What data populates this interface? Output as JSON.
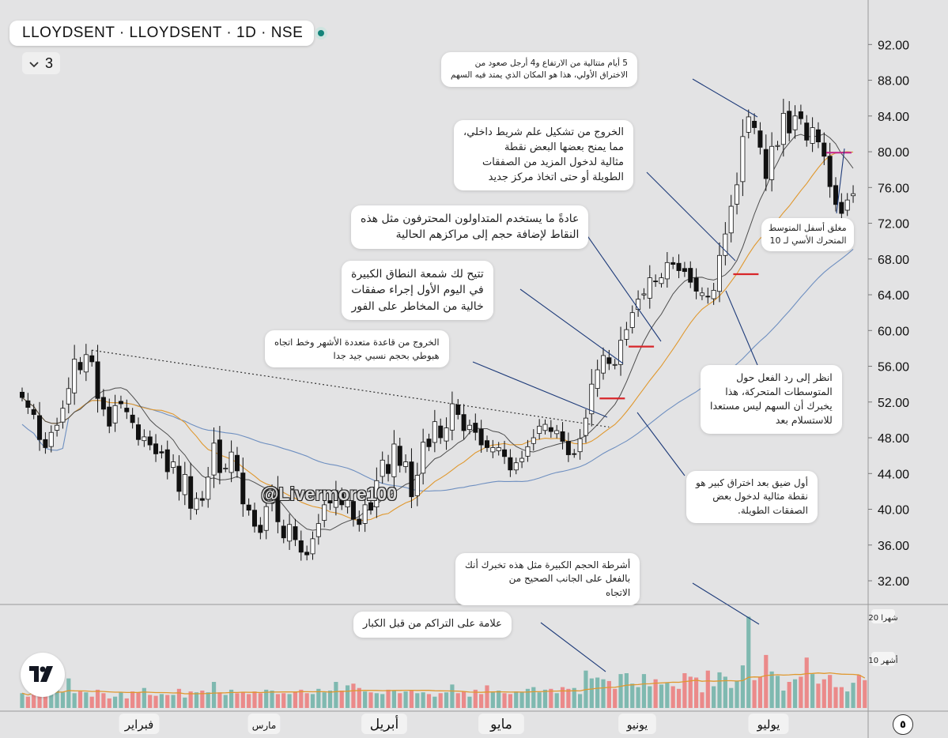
{
  "header": {
    "title": "LLOYDSENT · LLOYDSENT · 1D · NSE",
    "indicator_count": "3",
    "watermark": "@Livermore100",
    "settings_glyph": "٥"
  },
  "colors": {
    "background": "#e3e3e4",
    "up": "#ffffff",
    "down": "#111111",
    "sma10": "#4d4d4d",
    "sma20": "#e0982e",
    "sma50": "#6e8fc0",
    "volume_up": "#7fb9b0",
    "volume_down": "#eb8a8a",
    "volume_ma": "#e0982e",
    "pivot_red": "#d8262a",
    "pivot_magenta": "#c42b8c"
  },
  "annotations": [
    {
      "id": "five-days",
      "text": "5 أيام متتالية من الارتفاع و4 أرجل صعود من\nالاختراق الأولي، هذا هو المكان الذي يمتد فيه السهم"
    },
    {
      "id": "inside-bar-breakout",
      "text": "الخروج من تشكيل علم شريط داخلي،\nمما يمنح بعضها البعض نقطة\nمثالية لدخول المزيد من الصفقات\nالطويلة أو حتى اتخاذ مركز جديد"
    },
    {
      "id": "pro-traders",
      "text": "عادةً ما يستخدم المتداولون المحترفون مثل هذه\nالنقاط لإضافة حجم إلى مراكزهم الحالية"
    },
    {
      "id": "wide-range-candle",
      "text": "تتيح لك شمعة النطاق الكبيرة\nفي اليوم الأول إجراء صفقات\nخالية من المخاطر على الفور"
    },
    {
      "id": "base-breakout",
      "text": "الخروج من قاعدة متعددة الأشهر وخط اتجاه\nهبوطي بحجم نسبي جيد جدا"
    },
    {
      "id": "close-below-ma",
      "text": "مغلق أسفل المتوسط\nالمتحرك الأسي لـ 10"
    },
    {
      "id": "ma-reaction",
      "text": "انظر إلى رد الفعل حول\nالمتوسطات المتحركة، هذا\nيخبرك أن السهم ليس مستعدا\nللاستسلام بعد"
    },
    {
      "id": "first-tight-breakout",
      "text": "أول ضيق بعد اختراق كبير هو\nنقطة مثالية لدخول بعض\nالصفقات الطويلة."
    },
    {
      "id": "big-volume",
      "text": "أشرطة الحجم الكبيرة مثل هذه تخبرك أنك\nبالفعل على الجانب الصحيح من\nالاتجاه"
    },
    {
      "id": "accumulation",
      "text": "علامة على التراكم من قبل الكبار"
    }
  ],
  "chart_data": {
    "type": "candlestick",
    "title": "LLOYDSENT · LLOYDSENT · 1D · NSE",
    "xlabel": "",
    "ylabel": "",
    "ylim": [
      30.5,
      93
    ],
    "y_ticks": [
      "92.00",
      "88.00",
      "84.00",
      "80.00",
      "76.00",
      "72.00",
      "68.00",
      "64.00",
      "60.00",
      "56.00",
      "52.00",
      "48.00",
      "44.00",
      "40.00",
      "36.00",
      "32.00"
    ],
    "x_labels": [
      "فبراير",
      "مارس",
      "أبريل",
      "مايو",
      "يونيو",
      "يوليو"
    ],
    "volume_labels": [
      "20 شهرا",
      "10 أشهر"
    ],
    "grid": false,
    "closes": [
      52.5,
      51.4,
      50.6,
      47.8,
      46.9,
      48.6,
      49.4,
      51.3,
      53.5,
      56.8,
      55.6,
      57.3,
      56.5,
      52.4,
      51.2,
      49.3,
      51.6,
      51.8,
      50.9,
      49.7,
      47.8,
      48.1,
      47.2,
      46.2,
      46.3,
      44.2,
      45.3,
      42.0,
      43.9,
      40.1,
      41.2,
      41.0,
      43.6,
      47.4,
      44.1,
      44.6,
      46.4,
      44.3,
      40.6,
      39.9,
      38.1,
      37.4,
      40.3,
      41.7,
      38.6,
      36.8,
      38.3,
      36.6,
      35.2,
      34.9,
      36.7,
      38.4,
      40.5,
      40.7,
      42.1,
      40.5,
      41.0,
      38.9,
      38.3,
      40.5,
      39.9,
      43.2,
      45.5,
      44.0,
      47.3,
      44.9,
      45.3,
      41.4,
      43.8,
      47.5,
      47.0,
      49.8,
      48.0,
      49.1,
      51.8,
      50.6,
      48.8,
      49.4,
      48.6,
      47.2,
      46.9,
      46.9,
      46.9,
      45.9,
      44.4,
      45.2,
      45.7,
      47.0,
      48.0,
      49.3,
      49.5,
      48.7,
      48.8,
      47.6,
      46.1,
      46.2,
      47.9,
      50.2,
      54.0,
      55.6,
      57.2,
      56.3,
      56.2,
      58.9,
      60.1,
      62.0,
      63.5,
      64.1,
      65.9,
      65.5,
      65.9,
      67.6,
      67.4,
      66.7,
      66.6,
      65.4,
      64.4,
      64.2,
      63.8,
      64.5,
      68.4,
      70.8,
      73.9,
      76.3,
      81.7,
      83.9,
      82.7,
      80.5,
      77.0,
      80.6,
      80.7,
      84.3,
      82.1,
      84.0,
      83.7,
      81.3,
      82.7,
      81.1,
      79.5,
      76.1,
      74.1,
      73.1,
      74.6,
      75.3
    ],
    "volume": [
      17,
      13,
      22,
      21,
      15,
      17,
      23,
      18,
      34,
      17,
      19,
      18,
      13,
      21,
      17,
      11,
      13,
      18,
      11,
      19,
      18,
      23,
      15,
      14,
      16,
      15,
      15,
      22,
      12,
      19,
      18,
      20,
      18,
      30,
      18,
      15,
      21,
      17,
      18,
      16,
      19,
      17,
      21,
      20,
      16,
      17,
      16,
      19,
      21,
      17,
      16,
      22,
      18,
      20,
      30,
      20,
      26,
      28,
      23,
      19,
      18,
      17,
      16,
      21,
      20,
      17,
      19,
      20,
      17,
      18,
      16,
      13,
      17,
      18,
      27,
      17,
      19,
      13,
      21,
      16,
      26,
      18,
      20,
      17,
      16,
      19,
      18,
      22,
      24,
      18,
      21,
      22,
      17,
      24,
      22,
      23,
      16,
      43,
      34,
      35,
      33,
      31,
      22,
      39,
      40,
      28,
      24,
      39,
      25,
      33,
      27,
      29,
      25,
      22,
      40,
      36,
      35,
      18,
      43,
      25,
      41,
      36,
      23,
      31,
      49,
      105,
      32,
      36,
      61,
      42,
      37,
      20,
      30,
      33,
      36,
      58,
      39,
      28,
      33,
      38,
      24,
      24,
      19,
      29,
      38,
      32
    ]
  }
}
